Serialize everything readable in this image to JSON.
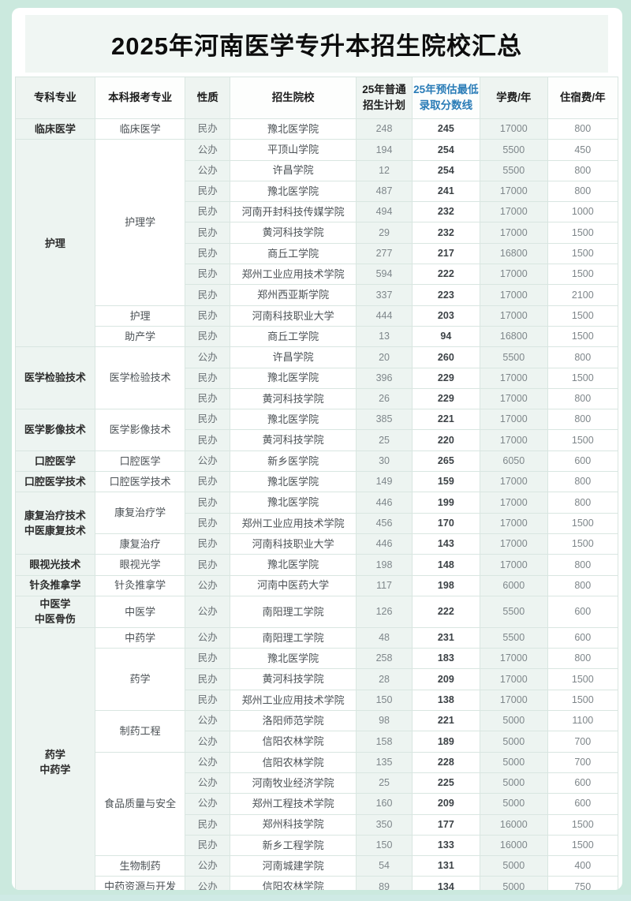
{
  "colors": {
    "page_background": "#cbe9de",
    "card_background": "#ffffff",
    "title_panel_background": "#f0f6f3",
    "column_tint": "#edf4f1",
    "score_header_blue": "#2a7cb7",
    "border": "#d9e6e1"
  },
  "chart_data": {
    "type": "table",
    "title": "2025年河南医学专升本招生院校汇总",
    "columns": [
      "专科专业",
      "本科报考专业",
      "性质",
      "招生院校",
      "25年普通\n招生计划",
      "25年预估最低\n录取分数线",
      "学费/年",
      "住宿费/年"
    ],
    "col1_groups": [
      {
        "label": "临床医学",
        "span": 1
      },
      {
        "label": "护理",
        "span": 10
      },
      {
        "label": "医学检验技术",
        "span": 3
      },
      {
        "label": "医学影像技术",
        "span": 2
      },
      {
        "label": "口腔医学",
        "span": 1
      },
      {
        "label": "口腔医学技术",
        "span": 1
      },
      {
        "label": "康复治疗技术\n中医康复技术",
        "span": 3
      },
      {
        "label": "眼视光技术",
        "span": 1
      },
      {
        "label": "针灸推拿学",
        "span": 1
      },
      {
        "label": "中医学\n中医骨伤",
        "span": 1
      },
      {
        "label": "药学\n中药学",
        "span": 13
      }
    ],
    "col2_groups": [
      {
        "label": "临床医学",
        "span": 1
      },
      {
        "label": "护理学",
        "span": 8
      },
      {
        "label": "护理",
        "span": 1
      },
      {
        "label": "助产学",
        "span": 1
      },
      {
        "label": "医学检验技术",
        "span": 3
      },
      {
        "label": "医学影像技术",
        "span": 2
      },
      {
        "label": "口腔医学",
        "span": 1
      },
      {
        "label": "口腔医学技术",
        "span": 1
      },
      {
        "label": "康复治疗学",
        "span": 2
      },
      {
        "label": "康复治疗",
        "span": 1
      },
      {
        "label": "眼视光学",
        "span": 1
      },
      {
        "label": "针灸推拿学",
        "span": 1
      },
      {
        "label": "中医学",
        "span": 1
      },
      {
        "label": "中药学",
        "span": 1
      },
      {
        "label": "药学",
        "span": 3
      },
      {
        "label": "制药工程",
        "span": 2
      },
      {
        "label": "食品质量与安全",
        "span": 5
      },
      {
        "label": "生物制药",
        "span": 1
      },
      {
        "label": "中药资源与开发",
        "span": 1
      }
    ],
    "rows": [
      {
        "nature": "民办",
        "college": "豫北医学院",
        "plan": "248",
        "score": "245",
        "tuition": "17000",
        "dorm": "800"
      },
      {
        "nature": "公办",
        "college": "平顶山学院",
        "plan": "194",
        "score": "254",
        "tuition": "5500",
        "dorm": "450"
      },
      {
        "nature": "公办",
        "college": "许昌学院",
        "plan": "12",
        "score": "254",
        "tuition": "5500",
        "dorm": "800"
      },
      {
        "nature": "民办",
        "college": "豫北医学院",
        "plan": "487",
        "score": "241",
        "tuition": "17000",
        "dorm": "800"
      },
      {
        "nature": "民办",
        "college": "河南开封科技传媒学院",
        "plan": "494",
        "score": "232",
        "tuition": "17000",
        "dorm": "1000"
      },
      {
        "nature": "民办",
        "college": "黄河科技学院",
        "plan": "29",
        "score": "232",
        "tuition": "17000",
        "dorm": "1500"
      },
      {
        "nature": "民办",
        "college": "商丘工学院",
        "plan": "277",
        "score": "217",
        "tuition": "16800",
        "dorm": "1500"
      },
      {
        "nature": "民办",
        "college": "郑州工业应用技术学院",
        "plan": "594",
        "score": "222",
        "tuition": "17000",
        "dorm": "1500"
      },
      {
        "nature": "民办",
        "college": "郑州西亚斯学院",
        "plan": "337",
        "score": "223",
        "tuition": "17000",
        "dorm": "2100"
      },
      {
        "nature": "民办",
        "college": "河南科技职业大学",
        "plan": "444",
        "score": "203",
        "tuition": "17000",
        "dorm": "1500"
      },
      {
        "nature": "民办",
        "college": "商丘工学院",
        "plan": "13",
        "score": "94",
        "tuition": "16800",
        "dorm": "1500"
      },
      {
        "nature": "公办",
        "college": "许昌学院",
        "plan": "20",
        "score": "260",
        "tuition": "5500",
        "dorm": "800"
      },
      {
        "nature": "民办",
        "college": "豫北医学院",
        "plan": "396",
        "score": "229",
        "tuition": "17000",
        "dorm": "1500"
      },
      {
        "nature": "民办",
        "college": "黄河科技学院",
        "plan": "26",
        "score": "229",
        "tuition": "17000",
        "dorm": "800"
      },
      {
        "nature": "民办",
        "college": "豫北医学院",
        "plan": "385",
        "score": "221",
        "tuition": "17000",
        "dorm": "800"
      },
      {
        "nature": "民办",
        "college": "黄河科技学院",
        "plan": "25",
        "score": "220",
        "tuition": "17000",
        "dorm": "1500"
      },
      {
        "nature": "公办",
        "college": "新乡医学院",
        "plan": "30",
        "score": "265",
        "tuition": "6050",
        "dorm": "600"
      },
      {
        "nature": "民办",
        "college": "豫北医学院",
        "plan": "149",
        "score": "159",
        "tuition": "17000",
        "dorm": "800"
      },
      {
        "nature": "民办",
        "college": "豫北医学院",
        "plan": "446",
        "score": "199",
        "tuition": "17000",
        "dorm": "800"
      },
      {
        "nature": "民办",
        "college": "郑州工业应用技术学院",
        "plan": "456",
        "score": "170",
        "tuition": "17000",
        "dorm": "1500"
      },
      {
        "nature": "民办",
        "college": "河南科技职业大学",
        "plan": "446",
        "score": "143",
        "tuition": "17000",
        "dorm": "1500"
      },
      {
        "nature": "民办",
        "college": "豫北医学院",
        "plan": "198",
        "score": "148",
        "tuition": "17000",
        "dorm": "800"
      },
      {
        "nature": "公办",
        "college": "河南中医药大学",
        "plan": "117",
        "score": "198",
        "tuition": "6000",
        "dorm": "800"
      },
      {
        "nature": "公办",
        "college": "南阳理工学院",
        "plan": "126",
        "score": "222",
        "tuition": "5500",
        "dorm": "600"
      },
      {
        "nature": "公办",
        "college": "南阳理工学院",
        "plan": "48",
        "score": "231",
        "tuition": "5500",
        "dorm": "600"
      },
      {
        "nature": "民办",
        "college": "豫北医学院",
        "plan": "258",
        "score": "183",
        "tuition": "17000",
        "dorm": "800"
      },
      {
        "nature": "民办",
        "college": "黄河科技学院",
        "plan": "28",
        "score": "209",
        "tuition": "17000",
        "dorm": "1500"
      },
      {
        "nature": "民办",
        "college": "郑州工业应用技术学院",
        "plan": "150",
        "score": "138",
        "tuition": "17000",
        "dorm": "1500"
      },
      {
        "nature": "公办",
        "college": "洛阳师范学院",
        "plan": "98",
        "score": "221",
        "tuition": "5000",
        "dorm": "1100"
      },
      {
        "nature": "公办",
        "college": "信阳农林学院",
        "plan": "158",
        "score": "189",
        "tuition": "5000",
        "dorm": "700"
      },
      {
        "nature": "公办",
        "college": "信阳农林学院",
        "plan": "135",
        "score": "228",
        "tuition": "5000",
        "dorm": "700"
      },
      {
        "nature": "公办",
        "college": "河南牧业经济学院",
        "plan": "25",
        "score": "225",
        "tuition": "5000",
        "dorm": "600"
      },
      {
        "nature": "公办",
        "college": "郑州工程技术学院",
        "plan": "160",
        "score": "209",
        "tuition": "5000",
        "dorm": "600"
      },
      {
        "nature": "民办",
        "college": "郑州科技学院",
        "plan": "350",
        "score": "177",
        "tuition": "16000",
        "dorm": "1500"
      },
      {
        "nature": "民办",
        "college": "新乡工程学院",
        "plan": "150",
        "score": "133",
        "tuition": "16000",
        "dorm": "1500"
      },
      {
        "nature": "公办",
        "college": "河南城建学院",
        "plan": "54",
        "score": "131",
        "tuition": "5000",
        "dorm": "400"
      },
      {
        "nature": "公办",
        "college": "信阳农林学院",
        "plan": "89",
        "score": "134",
        "tuition": "5000",
        "dorm": "750"
      }
    ]
  }
}
